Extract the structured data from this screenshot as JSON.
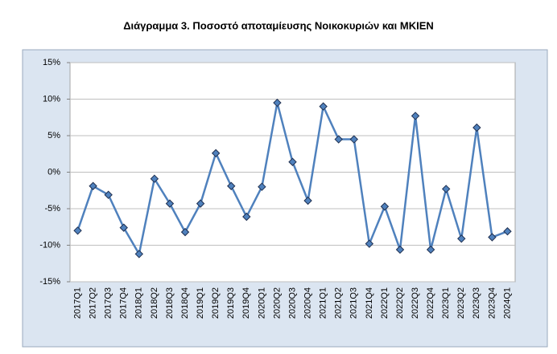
{
  "chart_data": {
    "type": "line",
    "title": "Διάγραμμα 3. Ποσοστό αποταμίευσης Νοικοκυριών και ΜΚΙΕΝ",
    "categories": [
      "2017Q1",
      "2017Q2",
      "2017Q3",
      "2017Q4",
      "2018Q1",
      "2018Q2",
      "2018Q3",
      "2018Q4",
      "2019Q1",
      "2019Q2",
      "2019Q3",
      "2019Q4",
      "2020Q1",
      "2020Q2",
      "2020Q3",
      "2020Q4",
      "2021Q1",
      "2021Q2",
      "2021Q3",
      "2021Q4",
      "2022Q1",
      "2022Q2",
      "2022Q3",
      "2022Q4",
      "2023Q1",
      "2023Q2",
      "2023Q3",
      "2023Q4",
      "2024Q1"
    ],
    "values": [
      -8.0,
      -1.9,
      -3.1,
      -7.6,
      -11.2,
      -0.9,
      -4.3,
      -8.2,
      -4.3,
      2.6,
      -1.9,
      -6.1,
      -2.0,
      9.5,
      1.4,
      -3.9,
      9.0,
      4.5,
      4.5,
      -9.8,
      -4.7,
      -10.6,
      7.7,
      -10.6,
      -2.3,
      -9.1,
      6.1,
      -8.9,
      -8.1
    ],
    "color": "#4f81bd",
    "ylim": [
      -15,
      15
    ],
    "yticks": [
      {
        "value": -15,
        "label": "-15%"
      },
      {
        "value": -10,
        "label": "-10%"
      },
      {
        "value": -5,
        "label": "-5%"
      },
      {
        "value": 0,
        "label": "0%"
      },
      {
        "value": 5,
        "label": "5%"
      },
      {
        "value": 10,
        "label": "10%"
      },
      {
        "value": 15,
        "label": "15%"
      }
    ],
    "grid": true
  }
}
